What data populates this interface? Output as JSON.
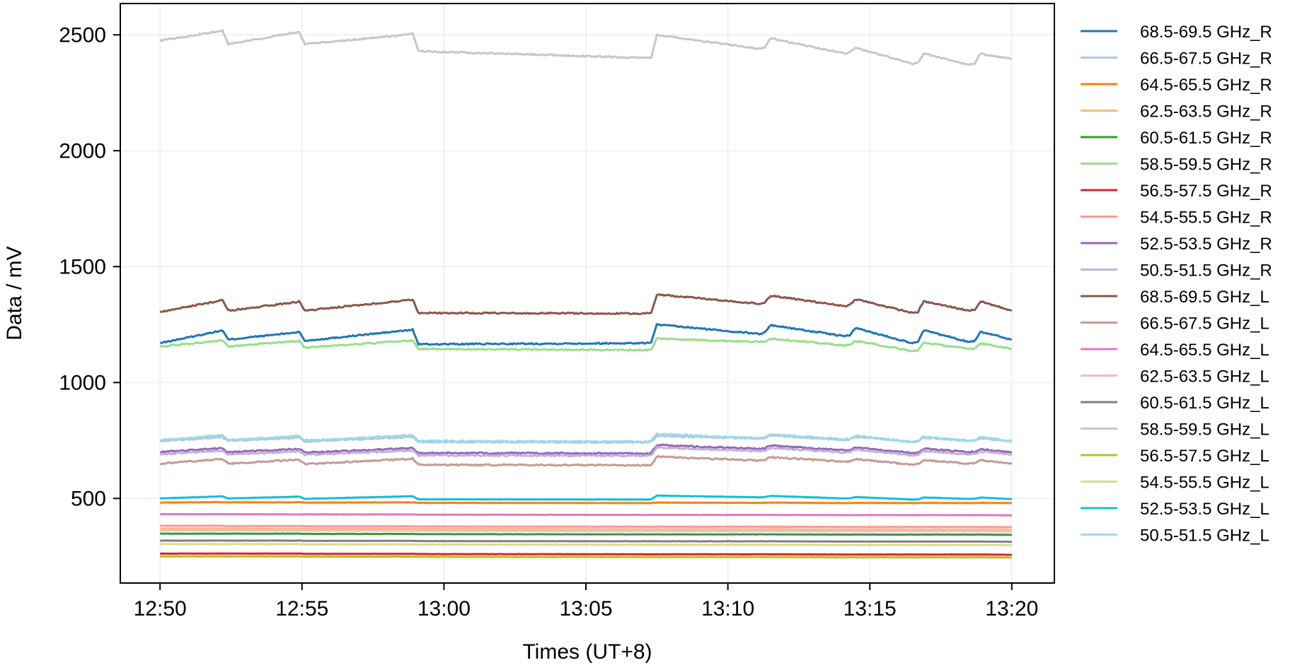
{
  "chart_data": {
    "type": "line",
    "title": "",
    "xlabel": "Times (UT+8)",
    "ylabel": "Data / mV",
    "x_ticks": [
      "12:50",
      "12:55",
      "13:00",
      "13:05",
      "13:10",
      "13:15",
      "13:20"
    ],
    "x_tick_minutes": [
      0,
      5,
      10,
      15,
      20,
      25,
      30
    ],
    "xlim_minutes": [
      -1.4,
      31.5
    ],
    "y_ticks": [
      500,
      1000,
      1500,
      2000,
      2500
    ],
    "ylim": [
      135,
      2635
    ],
    "grid": true,
    "legend_position": "outside-right",
    "step_times_minutes": [
      2.2,
      4.9,
      8.9,
      17.3,
      21.3,
      24.3,
      26.7,
      28.7
    ],
    "x_minutes": [
      0,
      2,
      2.2,
      2.4,
      4.7,
      4.9,
      5.1,
      8.7,
      8.9,
      9.1,
      17.1,
      17.3,
      17.5,
      21.1,
      21.3,
      21.5,
      24.1,
      24.3,
      24.5,
      26.5,
      26.7,
      26.9,
      28.5,
      28.7,
      28.9,
      30
    ],
    "series": [
      {
        "name": "68.5-69.5 GHz_R",
        "color": "#1f77b4",
        "values": [
          1170,
          1220,
          1225,
          1185,
          1215,
          1218,
          1180,
          1225,
          1228,
          1165,
          1170,
          1175,
          1250,
          1210,
          1215,
          1248,
          1200,
          1205,
          1235,
          1170,
          1175,
          1225,
          1175,
          1180,
          1220,
          1185
        ]
      },
      {
        "name": "66.5-67.5 GHz_R",
        "color": "#aec7e8",
        "values": [
          748,
          762,
          764,
          748,
          760,
          762,
          746,
          764,
          766,
          744,
          742,
          744,
          770,
          758,
          760,
          772,
          752,
          754,
          766,
          744,
          746,
          762,
          748,
          750,
          760,
          746
        ]
      },
      {
        "name": "64.5-65.5 GHz_R",
        "color": "#ff7f0e",
        "values": [
          482,
          484,
          484,
          483,
          483,
          484,
          482,
          483,
          483,
          481,
          480,
          480,
          482,
          481,
          481,
          482,
          480,
          480,
          481,
          480,
          480,
          481,
          480,
          480,
          481,
          480
        ]
      },
      {
        "name": "62.5-63.5 GHz_R",
        "color": "#ffbb78",
        "values": [
          370,
          370,
          370,
          370,
          369,
          369,
          369,
          369,
          369,
          368,
          367,
          367,
          367,
          367,
          367,
          367,
          366,
          366,
          366,
          366,
          366,
          366,
          366,
          366,
          366,
          365
        ]
      },
      {
        "name": "60.5-61.5 GHz_R",
        "color": "#2ca02c",
        "values": [
          348,
          348,
          348,
          348,
          348,
          348,
          347,
          347,
          347,
          346,
          345,
          345,
          345,
          345,
          345,
          345,
          344,
          344,
          344,
          344,
          344,
          344,
          344,
          344,
          344,
          343
        ]
      },
      {
        "name": "58.5-59.5 GHz_R",
        "color": "#98df8a",
        "values": [
          1155,
          1180,
          1182,
          1155,
          1178,
          1180,
          1150,
          1180,
          1182,
          1145,
          1140,
          1142,
          1190,
          1175,
          1178,
          1190,
          1160,
          1162,
          1180,
          1135,
          1138,
          1172,
          1145,
          1148,
          1170,
          1145
        ]
      },
      {
        "name": "56.5-57.5 GHz_R",
        "color": "#d62728",
        "values": [
          262,
          262,
          262,
          262,
          262,
          262,
          261,
          261,
          261,
          260,
          259,
          259,
          259,
          259,
          259,
          259,
          258,
          258,
          258,
          258,
          258,
          258,
          258,
          258,
          258,
          257
        ]
      },
      {
        "name": "54.5-55.5 GHz_R",
        "color": "#ff9896",
        "values": [
          382,
          382,
          382,
          381,
          381,
          381,
          380,
          380,
          380,
          379,
          378,
          378,
          378,
          378,
          378,
          378,
          377,
          377,
          377,
          377,
          377,
          377,
          377,
          377,
          377,
          376
        ]
      },
      {
        "name": "52.5-53.5 GHz_R",
        "color": "#9467bd",
        "values": [
          700,
          715,
          716,
          700,
          712,
          714,
          698,
          716,
          718,
          696,
          694,
          696,
          730,
          714,
          716,
          728,
          708,
          710,
          720,
          696,
          698,
          714,
          700,
          702,
          712,
          700
        ]
      },
      {
        "name": "50.5-51.5 GHz_R",
        "color": "#c5b0d5",
        "values": [
          690,
          705,
          706,
          690,
          702,
          704,
          688,
          706,
          708,
          686,
          684,
          686,
          720,
          704,
          706,
          718,
          698,
          700,
          710,
          686,
          688,
          704,
          690,
          692,
          702,
          690
        ]
      },
      {
        "name": "68.5-69.5 GHz_L",
        "color": "#8c564b",
        "values": [
          1305,
          1350,
          1355,
          1310,
          1345,
          1350,
          1310,
          1355,
          1358,
          1300,
          1298,
          1300,
          1380,
          1340,
          1345,
          1375,
          1330,
          1335,
          1360,
          1300,
          1305,
          1350,
          1310,
          1315,
          1350,
          1310
        ]
      },
      {
        "name": "66.5-67.5 GHz_L",
        "color": "#c49c94",
        "values": [
          650,
          668,
          670,
          650,
          666,
          668,
          648,
          670,
          672,
          645,
          643,
          645,
          680,
          664,
          666,
          678,
          658,
          660,
          670,
          645,
          648,
          666,
          650,
          652,
          666,
          650
        ]
      },
      {
        "name": "64.5-65.5 GHz_L",
        "color": "#e377c2",
        "values": [
          432,
          432,
          432,
          432,
          431,
          431,
          431,
          431,
          431,
          430,
          429,
          429,
          429,
          429,
          429,
          429,
          428,
          428,
          428,
          428,
          428,
          428,
          428,
          428,
          428,
          427
        ]
      },
      {
        "name": "62.5-63.5 GHz_L",
        "color": "#f7b6d2",
        "values": [
          362,
          362,
          362,
          362,
          361,
          361,
          361,
          361,
          361,
          360,
          359,
          359,
          359,
          359,
          359,
          359,
          358,
          358,
          358,
          358,
          358,
          358,
          358,
          358,
          358,
          357
        ]
      },
      {
        "name": "60.5-61.5 GHz_L",
        "color": "#7f7f7f",
        "values": [
          318,
          318,
          318,
          318,
          318,
          318,
          317,
          317,
          317,
          316,
          315,
          315,
          315,
          315,
          315,
          315,
          314,
          314,
          314,
          314,
          314,
          314,
          314,
          314,
          314,
          313
        ]
      },
      {
        "name": "58.5-59.5 GHz_L",
        "color": "#c7c7c7",
        "values": [
          2475,
          2515,
          2518,
          2460,
          2508,
          2512,
          2460,
          2500,
          2505,
          2430,
          2400,
          2400,
          2500,
          2440,
          2445,
          2485,
          2420,
          2425,
          2445,
          2375,
          2380,
          2420,
          2370,
          2375,
          2420,
          2395
        ]
      },
      {
        "name": "56.5-57.5 GHz_L",
        "color": "#bcbd22",
        "values": [
          250,
          250,
          250,
          250,
          250,
          250,
          249,
          249,
          249,
          248,
          247,
          247,
          247,
          247,
          247,
          247,
          246,
          246,
          246,
          246,
          246,
          246,
          246,
          246,
          246,
          245
        ]
      },
      {
        "name": "54.5-55.5 GHz_L",
        "color": "#dbdb8d",
        "values": [
          303,
          303,
          303,
          303,
          303,
          303,
          302,
          302,
          302,
          301,
          300,
          300,
          300,
          300,
          300,
          300,
          299,
          299,
          299,
          299,
          299,
          299,
          299,
          299,
          299,
          298
        ]
      },
      {
        "name": "52.5-53.5 GHz_L",
        "color": "#17becf",
        "values": [
          500,
          508,
          509,
          500,
          507,
          508,
          498,
          509,
          510,
          496,
          495,
          496,
          512,
          505,
          506,
          511,
          500,
          501,
          506,
          495,
          496,
          504,
          498,
          499,
          504,
          497
        ]
      },
      {
        "name": "50.5-51.5 GHz_L",
        "color": "#9edae5",
        "values": [
          752,
          770,
          772,
          752,
          768,
          770,
          750,
          772,
          774,
          748,
          745,
          747,
          778,
          760,
          762,
          776,
          755,
          757,
          770,
          745,
          748,
          766,
          750,
          752,
          764,
          748
        ]
      }
    ]
  }
}
